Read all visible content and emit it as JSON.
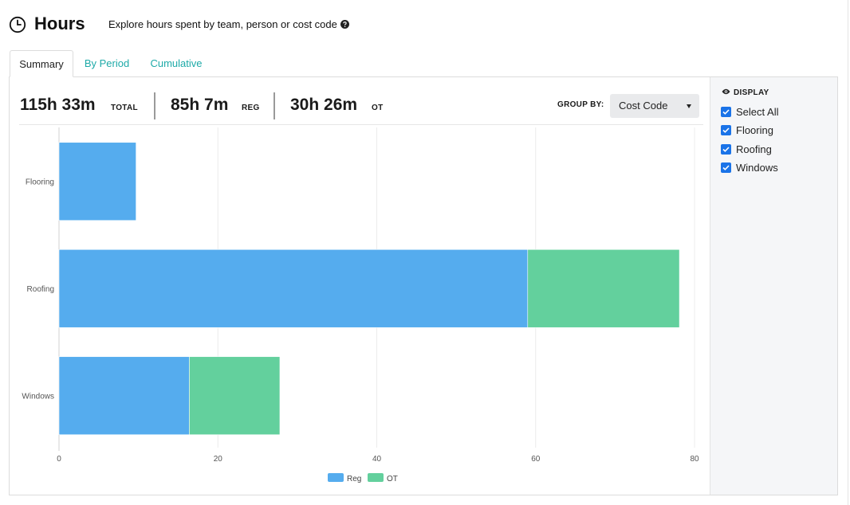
{
  "header": {
    "title": "Hours",
    "subtitle": "Explore hours spent by team, person or cost code",
    "clock_icon": "clock-icon",
    "help_icon": "question-circle-icon"
  },
  "tabs": [
    {
      "label": "Summary",
      "active": true
    },
    {
      "label": "By Period",
      "active": false
    },
    {
      "label": "Cumulative",
      "active": false
    }
  ],
  "stats": {
    "total_value": "115h 33m",
    "total_label": "TOTAL",
    "reg_value": "85h 7m",
    "reg_label": "REG",
    "ot_value": "30h 26m",
    "ot_label": "OT"
  },
  "group_by": {
    "label": "GROUP BY:",
    "selected": "Cost Code"
  },
  "display": {
    "heading": "DISPLAY",
    "icon": "eye-icon",
    "options": [
      {
        "label": "Select All",
        "checked": true
      },
      {
        "label": "Flooring",
        "checked": true
      },
      {
        "label": "Roofing",
        "checked": true
      },
      {
        "label": "Windows",
        "checked": true
      }
    ]
  },
  "colors": {
    "reg": "#55acee",
    "ot": "#63d09d",
    "link": "#1eaaa8",
    "checkbox": "#1a73e8"
  },
  "chart_data": {
    "type": "bar",
    "orientation": "horizontal",
    "stacked": true,
    "categories": [
      "Flooring",
      "Roofing",
      "Windows"
    ],
    "series": [
      {
        "name": "Reg",
        "values": [
          9.7,
          59.0,
          16.4
        ]
      },
      {
        "name": "OT",
        "values": [
          0,
          19.1,
          11.4
        ]
      }
    ],
    "xlim": [
      0,
      80
    ],
    "xticks": [
      0,
      20,
      40,
      60,
      80
    ],
    "grid": true,
    "legend_position": "bottom"
  }
}
